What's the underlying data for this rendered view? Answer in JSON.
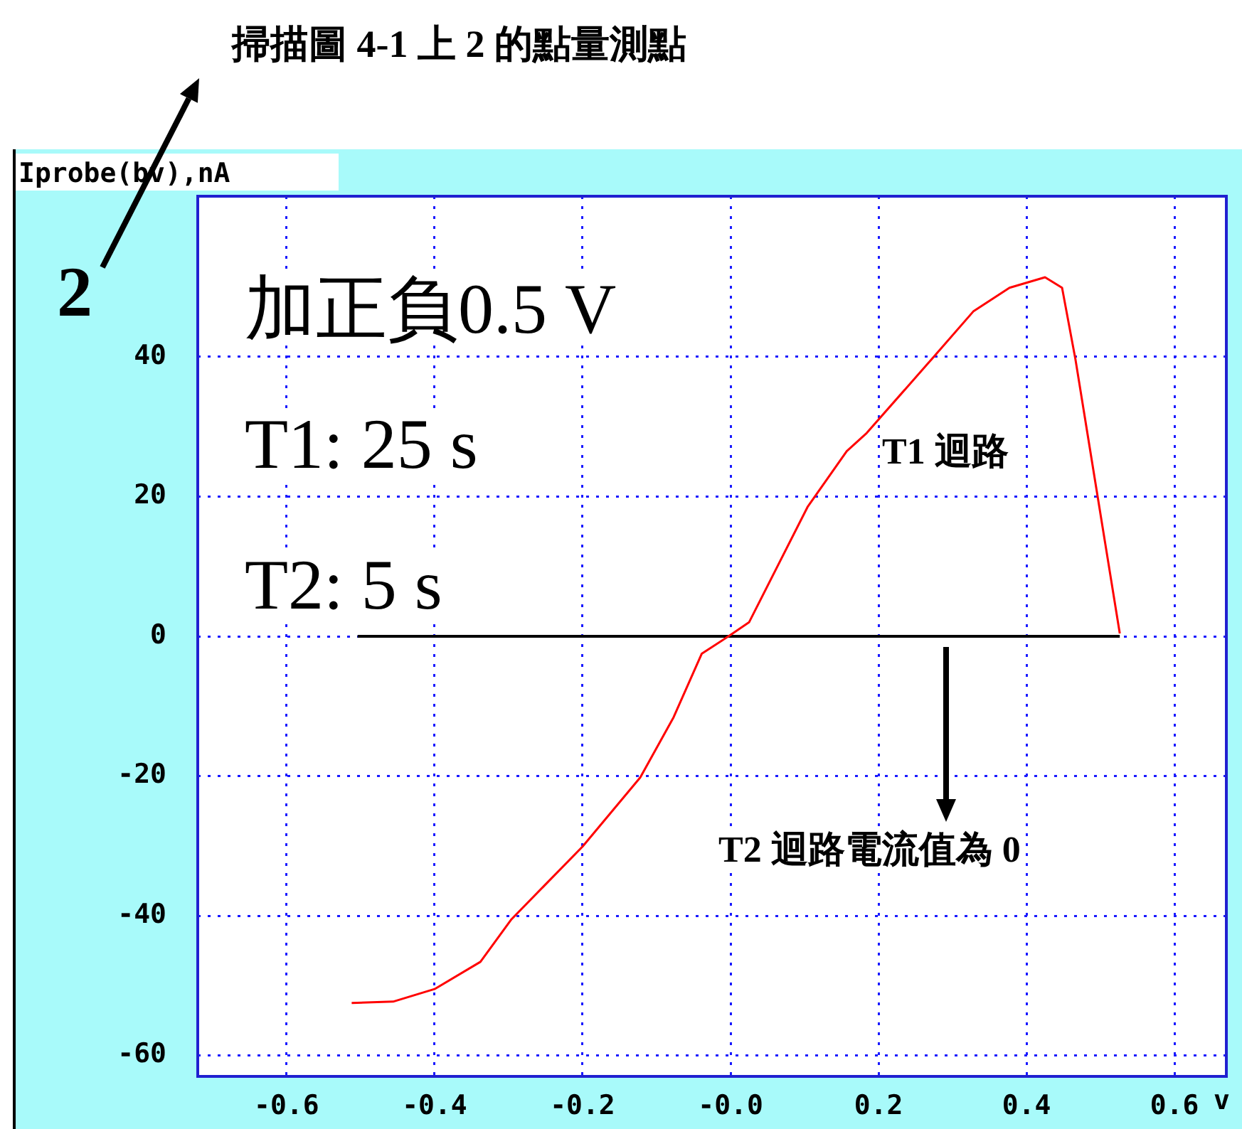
{
  "chart_data": {
    "type": "line",
    "title": "掃描圖 4-1 上 2 的點量測點",
    "ylabel": "Iprobe(bv),nA",
    "xlabel": "v",
    "annotations": [
      "2",
      "加正負0.5 V",
      "T1: 25 s",
      "T2: 5 s",
      "T1 迴路",
      "T2 迴路電流值為 0"
    ],
    "series": [
      {
        "color": "#ff0000",
        "x": [
          -0.512,
          -0.456,
          -0.4,
          -0.338,
          -0.296,
          -0.2,
          -0.122,
          -0.077,
          -0.039,
          0,
          0.025,
          0.104,
          0.157,
          0.184,
          0.272,
          0.328,
          0.377,
          0.425,
          0.448,
          0.466,
          0.526
        ],
        "values": [
          -52.5,
          -52.3,
          -50.5,
          -46.6,
          -40.5,
          -30.1,
          -20.2,
          -11.6,
          -2.5,
          0.2,
          2,
          18.5,
          26.5,
          29.1,
          39.7,
          46.5,
          49.9,
          51.4,
          49.9,
          39.7,
          0.4
        ]
      },
      {
        "color": "#000000",
        "x": [
          -0.504,
          0.526
        ],
        "values": [
          0,
          0
        ]
      }
    ],
    "xlim": [
      -0.72,
      0.67
    ],
    "ylim": [
      -63,
      63
    ],
    "xticks": [
      -0.6,
      -0.4,
      -0.2,
      {
        "value": 0,
        "label": "-0.0"
      },
      0.2,
      0.4,
      0.6
    ],
    "yticks": [
      -60,
      -40,
      -20,
      0,
      20,
      40
    ],
    "grid": true,
    "legend": false,
    "marker": "none",
    "line_style": "solid"
  }
}
